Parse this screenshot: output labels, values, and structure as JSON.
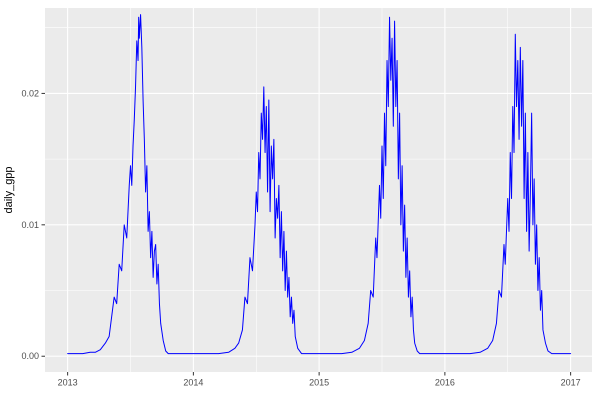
{
  "chart_data": {
    "type": "line",
    "title": "",
    "xlabel": "",
    "ylabel": "daily_gpp",
    "legend": "none",
    "grid": "on",
    "panel_bg": "#EBEBEB",
    "grid_color": "#FFFFFF",
    "tick_color": "#333333",
    "line_color": "#0000FF",
    "xlim": [
      2012.82,
      2017.17
    ],
    "ylim": [
      -0.0012,
      0.0265
    ],
    "x_ticks": [
      {
        "value": 2013,
        "label": "2013"
      },
      {
        "value": 2014,
        "label": "2014"
      },
      {
        "value": 2015,
        "label": "2015"
      },
      {
        "value": 2016,
        "label": "2016"
      },
      {
        "value": 2017,
        "label": "2017"
      }
    ],
    "y_ticks": [
      {
        "value": 0.0,
        "label": "0.00"
      },
      {
        "value": 0.01,
        "label": "0.01"
      },
      {
        "value": 0.02,
        "label": "0.02"
      }
    ],
    "x_minor": [
      2013.5,
      2014.5,
      2015.5,
      2016.5
    ],
    "y_minor": [
      0.005,
      0.015,
      0.025
    ],
    "series": [
      {
        "name": "daily_gpp",
        "points": [
          [
            2013.0,
            0.0002
          ],
          [
            2013.06,
            0.0002
          ],
          [
            2013.12,
            0.0002
          ],
          [
            2013.18,
            0.0003
          ],
          [
            2013.22,
            0.0003
          ],
          [
            2013.26,
            0.0005
          ],
          [
            2013.3,
            0.001
          ],
          [
            2013.33,
            0.0015
          ],
          [
            2013.35,
            0.003
          ],
          [
            2013.37,
            0.0045
          ],
          [
            2013.39,
            0.004
          ],
          [
            2013.41,
            0.007
          ],
          [
            2013.43,
            0.0065
          ],
          [
            2013.45,
            0.01
          ],
          [
            2013.47,
            0.009
          ],
          [
            2013.49,
            0.013
          ],
          [
            2013.5,
            0.0145
          ],
          [
            2013.51,
            0.013
          ],
          [
            2013.52,
            0.016
          ],
          [
            2013.53,
            0.018
          ],
          [
            2013.54,
            0.0205
          ],
          [
            2013.55,
            0.024
          ],
          [
            2013.56,
            0.0225
          ],
          [
            2013.565,
            0.0258
          ],
          [
            2013.57,
            0.0242
          ],
          [
            2013.58,
            0.026
          ],
          [
            2013.59,
            0.0235
          ],
          [
            2013.6,
            0.0195
          ],
          [
            2013.61,
            0.0165
          ],
          [
            2013.62,
            0.0125
          ],
          [
            2013.63,
            0.0145
          ],
          [
            2013.64,
            0.0095
          ],
          [
            2013.65,
            0.011
          ],
          [
            2013.66,
            0.0075
          ],
          [
            2013.67,
            0.0095
          ],
          [
            2013.68,
            0.006
          ],
          [
            2013.69,
            0.008
          ],
          [
            2013.7,
            0.0085
          ],
          [
            2013.71,
            0.0055
          ],
          [
            2013.72,
            0.007
          ],
          [
            2013.73,
            0.004
          ],
          [
            2013.74,
            0.0025
          ],
          [
            2013.76,
            0.0012
          ],
          [
            2013.78,
            0.0004
          ],
          [
            2013.8,
            0.0002
          ],
          [
            2013.88,
            0.0002
          ],
          [
            2013.96,
            0.0002
          ],
          [
            2014.04,
            0.0002
          ],
          [
            2014.12,
            0.0002
          ],
          [
            2014.2,
            0.0002
          ],
          [
            2014.28,
            0.0003
          ],
          [
            2014.33,
            0.0006
          ],
          [
            2014.36,
            0.001
          ],
          [
            2014.39,
            0.002
          ],
          [
            2014.41,
            0.0045
          ],
          [
            2014.43,
            0.004
          ],
          [
            2014.45,
            0.0075
          ],
          [
            2014.47,
            0.0065
          ],
          [
            2014.49,
            0.01
          ],
          [
            2014.5,
            0.0125
          ],
          [
            2014.51,
            0.011
          ],
          [
            2014.52,
            0.0155
          ],
          [
            2014.53,
            0.0135
          ],
          [
            2014.54,
            0.0185
          ],
          [
            2014.55,
            0.0165
          ],
          [
            2014.56,
            0.0205
          ],
          [
            2014.57,
            0.0155
          ],
          [
            2014.58,
            0.019
          ],
          [
            2014.59,
            0.0125
          ],
          [
            2014.6,
            0.0195
          ],
          [
            2014.61,
            0.011
          ],
          [
            2014.62,
            0.016
          ],
          [
            2014.63,
            0.0135
          ],
          [
            2014.64,
            0.0165
          ],
          [
            2014.65,
            0.009
          ],
          [
            2014.66,
            0.012
          ],
          [
            2014.67,
            0.0105
          ],
          [
            2014.68,
            0.013
          ],
          [
            2014.69,
            0.0075
          ],
          [
            2014.7,
            0.011
          ],
          [
            2014.71,
            0.0065
          ],
          [
            2014.72,
            0.0095
          ],
          [
            2014.73,
            0.005
          ],
          [
            2014.74,
            0.008
          ],
          [
            2014.75,
            0.0045
          ],
          [
            2014.76,
            0.006
          ],
          [
            2014.77,
            0.003
          ],
          [
            2014.78,
            0.0045
          ],
          [
            2014.79,
            0.0025
          ],
          [
            2014.8,
            0.0035
          ],
          [
            2014.81,
            0.0015
          ],
          [
            2014.83,
            0.0006
          ],
          [
            2014.86,
            0.0002
          ],
          [
            2014.94,
            0.0002
          ],
          [
            2015.02,
            0.0002
          ],
          [
            2015.1,
            0.0002
          ],
          [
            2015.18,
            0.0002
          ],
          [
            2015.26,
            0.0003
          ],
          [
            2015.32,
            0.0006
          ],
          [
            2015.36,
            0.0012
          ],
          [
            2015.39,
            0.0025
          ],
          [
            2015.41,
            0.005
          ],
          [
            2015.43,
            0.0045
          ],
          [
            2015.45,
            0.009
          ],
          [
            2015.46,
            0.0075
          ],
          [
            2015.48,
            0.013
          ],
          [
            2015.49,
            0.0105
          ],
          [
            2015.5,
            0.016
          ],
          [
            2015.51,
            0.012
          ],
          [
            2015.52,
            0.0185
          ],
          [
            2015.53,
            0.0145
          ],
          [
            2015.54,
            0.0225
          ],
          [
            2015.55,
            0.019
          ],
          [
            2015.56,
            0.0258
          ],
          [
            2015.57,
            0.021
          ],
          [
            2015.58,
            0.0242
          ],
          [
            2015.59,
            0.0175
          ],
          [
            2015.6,
            0.0255
          ],
          [
            2015.61,
            0.019
          ],
          [
            2015.62,
            0.0225
          ],
          [
            2015.63,
            0.0135
          ],
          [
            2015.64,
            0.0185
          ],
          [
            2015.65,
            0.01
          ],
          [
            2015.66,
            0.0145
          ],
          [
            2015.67,
            0.008
          ],
          [
            2015.68,
            0.0115
          ],
          [
            2015.69,
            0.006
          ],
          [
            2015.7,
            0.009
          ],
          [
            2015.71,
            0.0045
          ],
          [
            2015.72,
            0.0065
          ],
          [
            2015.73,
            0.003
          ],
          [
            2015.74,
            0.0045
          ],
          [
            2015.75,
            0.002
          ],
          [
            2015.76,
            0.001
          ],
          [
            2015.78,
            0.0004
          ],
          [
            2015.8,
            0.0002
          ],
          [
            2015.88,
            0.0002
          ],
          [
            2015.96,
            0.0002
          ],
          [
            2016.04,
            0.0002
          ],
          [
            2016.12,
            0.0002
          ],
          [
            2016.2,
            0.0002
          ],
          [
            2016.28,
            0.0003
          ],
          [
            2016.34,
            0.0006
          ],
          [
            2016.38,
            0.0012
          ],
          [
            2016.41,
            0.0025
          ],
          [
            2016.43,
            0.005
          ],
          [
            2016.45,
            0.0045
          ],
          [
            2016.47,
            0.0085
          ],
          [
            2016.48,
            0.007
          ],
          [
            2016.5,
            0.012
          ],
          [
            2016.51,
            0.0095
          ],
          [
            2016.52,
            0.0155
          ],
          [
            2016.53,
            0.012
          ],
          [
            2016.54,
            0.019
          ],
          [
            2016.55,
            0.0155
          ],
          [
            2016.56,
            0.0245
          ],
          [
            2016.57,
            0.019
          ],
          [
            2016.58,
            0.0225
          ],
          [
            2016.59,
            0.0165
          ],
          [
            2016.6,
            0.0235
          ],
          [
            2016.61,
            0.0175
          ],
          [
            2016.62,
            0.0225
          ],
          [
            2016.63,
            0.012
          ],
          [
            2016.64,
            0.0185
          ],
          [
            2016.65,
            0.0095
          ],
          [
            2016.66,
            0.0155
          ],
          [
            2016.67,
            0.008
          ],
          [
            2016.68,
            0.0125
          ],
          [
            2016.69,
            0.0185
          ],
          [
            2016.7,
            0.01
          ],
          [
            2016.71,
            0.0135
          ],
          [
            2016.72,
            0.007
          ],
          [
            2016.73,
            0.01
          ],
          [
            2016.74,
            0.005
          ],
          [
            2016.75,
            0.0075
          ],
          [
            2016.76,
            0.0035
          ],
          [
            2016.77,
            0.005
          ],
          [
            2016.78,
            0.002
          ],
          [
            2016.8,
            0.001
          ],
          [
            2016.82,
            0.0004
          ],
          [
            2016.85,
            0.0002
          ],
          [
            2016.92,
            0.0002
          ],
          [
            2017.0,
            0.0002
          ]
        ]
      }
    ]
  }
}
